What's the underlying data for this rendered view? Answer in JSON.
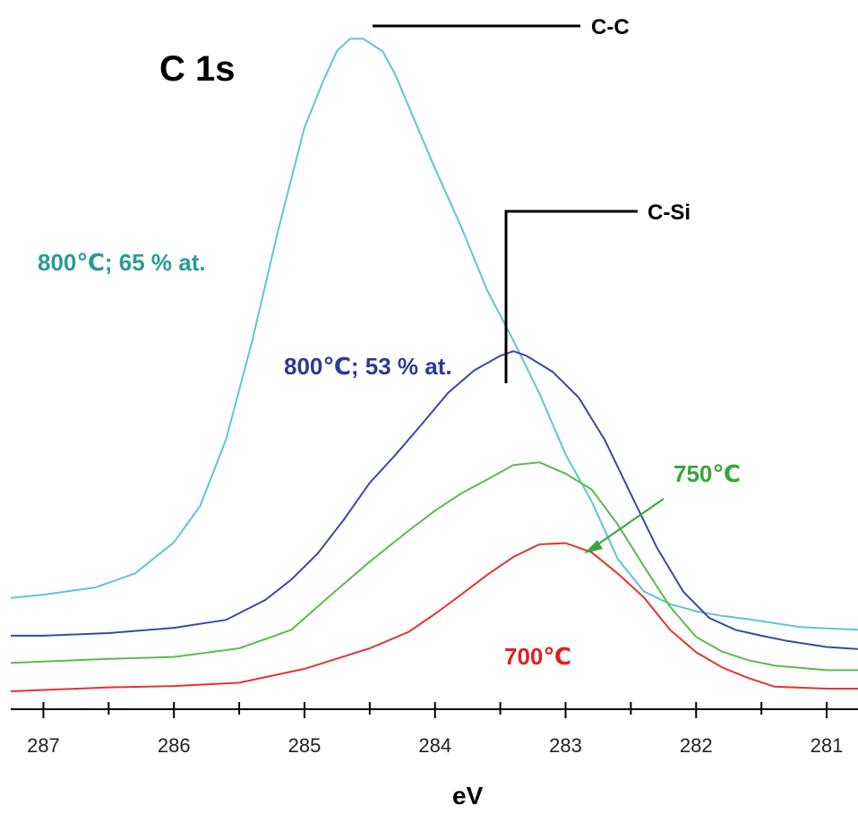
{
  "chart_data": {
    "type": "line",
    "title": "C 1s",
    "xlabel": "eV",
    "ylabel": "",
    "xlim": [
      287.25,
      280.76
    ],
    "ylim": [
      0,
      10
    ],
    "x_reversed": true,
    "grid": false,
    "x_ticks": [
      287,
      286,
      285,
      284,
      283,
      282,
      281
    ],
    "series": [
      {
        "name": "800℃; 65 % at.",
        "color": "#5bc8cc",
        "x": [
          287.25,
          287.0,
          286.6,
          286.3,
          286.0,
          285.8,
          285.6,
          285.4,
          285.2,
          285.0,
          284.85,
          284.75,
          284.65,
          284.55,
          284.4,
          284.3,
          284.2,
          284.0,
          283.8,
          283.6,
          283.4,
          283.2,
          283.0,
          282.8,
          282.6,
          282.4,
          282.2,
          282.0,
          281.8,
          281.6,
          281.4,
          281.2,
          281.0,
          280.76
        ],
        "y": [
          1.41,
          1.46,
          1.57,
          1.78,
          2.25,
          2.8,
          3.81,
          5.3,
          6.98,
          8.52,
          9.25,
          9.68,
          9.86,
          9.86,
          9.67,
          9.3,
          8.83,
          7.9,
          7.02,
          6.06,
          5.3,
          4.5,
          3.58,
          2.87,
          2.0,
          1.51,
          1.32,
          1.21,
          1.14,
          1.09,
          1.03,
          0.97,
          0.95,
          0.93
        ]
      },
      {
        "name": "800℃; 53 % at.",
        "color": "#3a4aa0",
        "x": [
          287.25,
          287.0,
          286.5,
          286.0,
          285.6,
          285.3,
          285.1,
          284.9,
          284.7,
          284.5,
          284.3,
          284.1,
          283.9,
          283.7,
          283.5,
          283.4,
          283.3,
          283.1,
          282.9,
          282.7,
          282.5,
          282.3,
          282.1,
          281.9,
          281.7,
          281.5,
          281.3,
          281.0,
          280.76
        ],
        "y": [
          0.84,
          0.84,
          0.88,
          0.96,
          1.08,
          1.38,
          1.69,
          2.08,
          2.59,
          3.15,
          3.58,
          4.04,
          4.51,
          4.85,
          5.07,
          5.14,
          5.07,
          4.83,
          4.44,
          3.8,
          2.98,
          2.17,
          1.51,
          1.11,
          0.93,
          0.84,
          0.76,
          0.67,
          0.64
        ]
      },
      {
        "name": "750℃",
        "color": "#5cba4e",
        "x": [
          287.25,
          287.0,
          286.5,
          286.0,
          285.5,
          285.1,
          284.8,
          284.5,
          284.2,
          284.0,
          283.8,
          283.6,
          283.4,
          283.2,
          283.0,
          282.8,
          282.6,
          282.4,
          282.2,
          282.0,
          281.8,
          281.6,
          281.4,
          281.0,
          280.76
        ],
        "y": [
          0.43,
          0.45,
          0.49,
          0.52,
          0.65,
          0.93,
          1.45,
          1.96,
          2.43,
          2.73,
          2.99,
          3.2,
          3.42,
          3.46,
          3.29,
          3.05,
          2.52,
          1.89,
          1.28,
          0.82,
          0.6,
          0.47,
          0.39,
          0.32,
          0.32
        ]
      },
      {
        "name": "700℃",
        "color": "#e83232",
        "x": [
          287.25,
          287.0,
          286.5,
          286.0,
          285.5,
          285.0,
          284.5,
          284.2,
          284.0,
          283.8,
          283.6,
          283.4,
          283.2,
          283.0,
          282.8,
          282.6,
          282.4,
          282.2,
          282.0,
          281.8,
          281.6,
          281.4,
          281.0,
          280.76
        ],
        "y": [
          0.0,
          0.02,
          0.06,
          0.08,
          0.13,
          0.34,
          0.65,
          0.9,
          1.17,
          1.46,
          1.76,
          2.03,
          2.22,
          2.24,
          2.1,
          1.78,
          1.42,
          0.93,
          0.59,
          0.36,
          0.2,
          0.07,
          0.04,
          0.04
        ]
      }
    ],
    "annotations": {
      "c_c": {
        "text": "C-C",
        "x": 284.65
      },
      "c_si": {
        "text": "C-Si",
        "x": 283.4
      },
      "label_800_65": {
        "text": "800℃; 65 % at.",
        "color": "#2a9a98"
      },
      "label_800_53": {
        "text": "800℃; 53 % at.",
        "color": "#2e3a90"
      },
      "label_750": {
        "text": "750℃",
        "color": "#3aa53a"
      },
      "label_700": {
        "text": "700℃",
        "color": "#e02020"
      }
    }
  }
}
